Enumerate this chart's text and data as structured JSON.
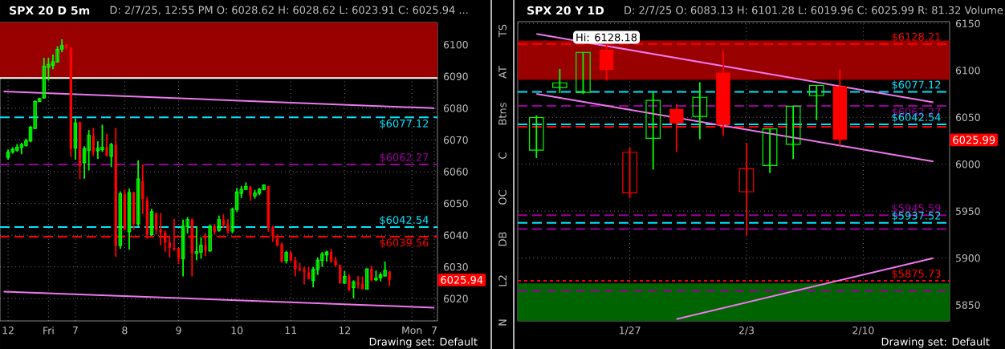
{
  "chart_data": [
    {
      "type": "candlestick",
      "title": "SPX 20 D 5m",
      "subtitle": "D: 2/7/25, 12:55 PM  O: 6028.62  H: 6028.62  L: 6023.91  C: 6025.94 ...",
      "annotations": [
        "Drawing set: Default",
        "6025.94"
      ],
      "categories": [
        null,
        "12",
        null,
        null,
        null,
        null,
        null,
        null,
        null,
        null,
        "Fri",
        null,
        null,
        null,
        null,
        null,
        "7",
        null,
        null,
        null,
        null,
        null,
        null,
        null,
        null,
        null,
        null,
        "8",
        null,
        null,
        null,
        null,
        null,
        null,
        null,
        null,
        null,
        null,
        null,
        "9",
        null,
        null,
        null,
        null,
        null,
        null,
        null,
        null,
        null,
        null,
        null,
        null,
        "10",
        null,
        null,
        null,
        null,
        null,
        null,
        null,
        null,
        null,
        null,
        null,
        "11",
        null,
        null,
        null,
        null,
        null,
        null,
        null,
        null,
        null,
        null,
        null,
        "12",
        null,
        null,
        null,
        null,
        null,
        null,
        null,
        null,
        null,
        null,
        null,
        null,
        null,
        null,
        "Mon",
        null,
        null,
        null,
        null,
        "7"
      ],
      "ohlc": [
        null,
        [
          6064.5,
          6067.0,
          6063.8,
          6066.2
        ],
        [
          6066.2,
          6067.7,
          6065.7,
          6067.0
        ],
        [
          6066.8,
          6068.7,
          6066.3,
          6067.7
        ],
        [
          6067.7,
          6069.1,
          6065.5,
          6068.5
        ],
        [
          6068.3,
          6070.4,
          6067.9,
          6069.7
        ],
        [
          6069.7,
          6074.5,
          6069.3,
          6074.0
        ],
        [
          6073.6,
          6082.5,
          6073.6,
          6082.1
        ],
        [
          6082.1,
          6083.3,
          6082.1,
          6083.0
        ],
        [
          6083.3,
          6095.9,
          6083.0,
          6093.2
        ],
        [
          6092.9,
          6095.9,
          6088.7,
          6093.8
        ],
        [
          6093.5,
          6096.9,
          6092.3,
          6094.6
        ],
        [
          6094.6,
          6099.5,
          6094.4,
          6098.5
        ],
        [
          6098.6,
          6101.7,
          6097.6,
          6099.7
        ],
        [
          6100.0,
          6100.3,
          6098.5,
          6098.9
        ],
        [
          6099.1,
          6099.3,
          6064.6,
          6067.2
        ],
        [
          6067.4,
          6076.8,
          6063.8,
          6075.3
        ],
        [
          6075.7,
          6075.7,
          6057.7,
          6061.9
        ],
        [
          6062.8,
          6068.0,
          6057.8,
          6067.3
        ],
        [
          6066.8,
          6073.1,
          6060.4,
          6071.4
        ],
        [
          6071.4,
          6073.8,
          6064.9,
          6066.2
        ],
        [
          6066.6,
          6069.6,
          6064.0,
          6067.4
        ],
        [
          6067.0,
          6074.8,
          6066.2,
          6067.7
        ],
        [
          6067.7,
          6071.9,
          6064.9,
          6064.9
        ],
        [
          6064.9,
          6069.1,
          6061.5,
          6068.5
        ],
        [
          6068.5,
          6073.8,
          6033.2,
          6036.6
        ],
        [
          6036.8,
          6053.8,
          6035.7,
          6053.0
        ],
        [
          6053.0,
          6054.4,
          6041.5,
          6041.9
        ],
        [
          6041.1,
          6054.7,
          6035.5,
          6053.4
        ],
        [
          6053.6,
          6053.6,
          6041.7,
          6043.6
        ],
        [
          6043.6,
          6063.6,
          6042.8,
          6057.7
        ],
        [
          6057.0,
          6062.3,
          6046.6,
          6051.3
        ],
        [
          6051.0,
          6052.1,
          6038.9,
          6040.2
        ],
        [
          6040.2,
          6048.3,
          6039.8,
          6047.4
        ],
        [
          6047.0,
          6047.0,
          6040.2,
          6041.7
        ],
        [
          6041.9,
          6047.0,
          6036.8,
          6040.8
        ],
        [
          6040.8,
          6041.5,
          6034.7,
          6037.7
        ],
        [
          6037.7,
          6039.8,
          6033.0,
          6036.0
        ],
        [
          6036.0,
          6045.1,
          6035.1,
          6035.5
        ],
        [
          6036.0,
          6036.0,
          6030.9,
          6032.6
        ],
        [
          6032.6,
          6044.9,
          6027.0,
          6042.8
        ],
        [
          6042.8,
          6045.7,
          6040.6,
          6044.9
        ],
        [
          6044.9,
          6045.3,
          6027.0,
          6034.3
        ],
        [
          6034.3,
          6042.8,
          6032.1,
          6034.8
        ],
        [
          6034.7,
          6039.4,
          6032.6,
          6036.8
        ],
        [
          6036.8,
          6040.6,
          6033.4,
          6035.1
        ],
        [
          6035.1,
          6043.4,
          6034.8,
          6042.8
        ],
        [
          6042.8,
          6043.6,
          6040.2,
          6041.1
        ],
        [
          6041.5,
          6046.2,
          6041.1,
          6044.9
        ],
        [
          6044.7,
          6046.6,
          6042.3,
          6043.2
        ],
        [
          6043.4,
          6045.1,
          6040.5,
          6041.3
        ],
        [
          6041.3,
          6048.7,
          6040.6,
          6048.1
        ],
        [
          6048.1,
          6054.9,
          6047.4,
          6053.6
        ],
        [
          6053.2,
          6055.5,
          6051.7,
          6054.4
        ],
        [
          6054.4,
          6056.6,
          6054.3,
          6055.3
        ],
        [
          6055.3,
          6055.5,
          6050.9,
          6052.6
        ],
        [
          6052.4,
          6054.3,
          6051.5,
          6053.2
        ],
        [
          6053.2,
          6054.9,
          6052.6,
          6054.4
        ],
        [
          6054.4,
          6056.0,
          6054.1,
          6055.8
        ],
        [
          6055.5,
          6055.5,
          6041.1,
          6042.3
        ],
        [
          6042.5,
          6043.0,
          6037.9,
          6039.8
        ],
        [
          6038.9,
          6040.2,
          6036.4,
          6036.8
        ],
        [
          6037.1,
          6037.7,
          6031.3,
          6031.7
        ],
        [
          6032.0,
          6035.1,
          6031.1,
          6034.5
        ],
        [
          6034.5,
          6035.1,
          6031.7,
          6032.0
        ],
        [
          6032.1,
          6033.2,
          6027.0,
          6029.2
        ],
        [
          6029.4,
          6031.3,
          6028.7,
          6028.9
        ],
        [
          6029.2,
          6030.0,
          6024.5,
          6028.3
        ],
        [
          6028.3,
          6030.0,
          6026.2,
          6026.2
        ],
        [
          6025.8,
          6030.0,
          6023.6,
          6029.2
        ],
        [
          6029.2,
          6033.0,
          6027.5,
          6032.1
        ],
        [
          6032.1,
          6034.7,
          6030.0,
          6034.0
        ],
        [
          6033.8,
          6035.1,
          6031.7,
          6034.7
        ],
        [
          6034.7,
          6035.7,
          6031.3,
          6031.7
        ],
        [
          6032.1,
          6033.2,
          6030.0,
          6030.6
        ],
        [
          6030.6,
          6030.6,
          6024.7,
          6024.9
        ],
        [
          6024.9,
          6028.7,
          6024.7,
          6027.0
        ],
        [
          6027.0,
          6027.7,
          6022.4,
          6022.8
        ],
        [
          6023.5,
          6025.8,
          6020.1,
          6025.2
        ],
        [
          6025.2,
          6027.2,
          6023.2,
          6024.5
        ],
        [
          6024.7,
          6027.0,
          6023.0,
          6023.0
        ],
        [
          6023.0,
          6029.4,
          6023.0,
          6029.4
        ],
        [
          6029.4,
          6030.4,
          6025.5,
          6025.8
        ],
        [
          6026.0,
          6028.9,
          6025.5,
          6026.4
        ],
        [
          6026.6,
          6028.3,
          6025.5,
          6027.5
        ],
        [
          6027.2,
          6031.7,
          6027.0,
          6028.9
        ],
        [
          6028.62,
          6028.62,
          6023.91,
          6025.94
        ],
        null,
        null,
        null,
        null,
        null,
        null,
        null,
        null,
        null,
        null
      ],
      "colors": [
        null,
        "#00ff00",
        "#00ff00",
        "#00ff00",
        "#00ff00",
        "#00ff00",
        "#00ff00",
        "#00ff00",
        "#00ff00",
        "#00ff00",
        "#00ff00",
        "#00ff00",
        "#00ff00",
        "#00ff00",
        "#ff0000",
        "#ff0000",
        "#00ff00",
        "#ff0000",
        "#00ff00",
        "#00ff00",
        "#ff0000",
        "#00ff00",
        "#00ff00",
        "#ff0000",
        "#00ff00",
        "#ff0000",
        "#00ff00",
        "#ff0000",
        "#00ff00",
        "#ff0000",
        "#00ff00",
        "#ff0000",
        "#ff0000",
        "#00ff00",
        "#ff0000",
        "#ff0000",
        "#ff0000",
        "#ff0000",
        "#ff0000",
        "#ff0000",
        "#00ff00",
        "#00ff00",
        "#ff0000",
        "#00ff00",
        "#00ff00",
        "#ff0000",
        "#00ff00",
        "#ff0000",
        "#00ff00",
        "#ff0000",
        "#ff0000",
        "#00ff00",
        "#00ff00",
        "#00ff00",
        "#00ff00",
        "#ff0000",
        "#00ff00",
        "#00ff00",
        "#00ff00",
        "#ff0000",
        "#ff0000",
        "#ff0000",
        "#ff0000",
        "#00ff00",
        "#ff0000",
        "#ff0000",
        "#ff0000",
        "#ff0000",
        "#ff0000",
        "#00ff00",
        "#00ff00",
        "#00ff00",
        "#00ff00",
        "#ff0000",
        "#ff0000",
        "#ff0000",
        "#00ff00",
        "#ff0000",
        "#00ff00",
        "#ff0000",
        "#ff0000",
        "#00ff00",
        "#ff0000",
        "#00ff00",
        "#00ff00",
        "#00ff00",
        "#ff0000",
        null,
        null,
        null,
        null,
        null,
        null,
        null,
        null,
        null,
        null
      ],
      "ylim": [
        6013,
        6107
      ],
      "yticks": [
        6020,
        6030,
        6040,
        6050,
        6060,
        6070,
        6080,
        6090,
        6100
      ],
      "grid": true,
      "ref_lines": [
        {
          "axis": "y",
          "value": 6077.12,
          "label": "$6077.12",
          "color": "#00e5ff",
          "line_style": "dashed"
        },
        {
          "axis": "y",
          "value": 6062.27,
          "label": "$6062.27",
          "color": "#990099",
          "line_style": "dashed"
        },
        {
          "axis": "y",
          "value": 6042.54,
          "label": "$6042.54",
          "color": "#00e5ff",
          "line_style": "dashed"
        },
        {
          "axis": "y",
          "value": 6039.56,
          "label": "$6039.56",
          "color": "#ff0000",
          "line_style": "dashed"
        },
        {
          "axis": "y",
          "value": 6089.5,
          "label": null,
          "color": "#ffffff",
          "line_style": "solid"
        }
      ],
      "bands": [
        {
          "axis": "y",
          "from": 6089.5,
          "to": 6107,
          "label": null,
          "color": "#990000"
        }
      ],
      "series": [
        {
          "type": "line",
          "color": "#ee77ee",
          "values": [
            6085.3,
            null,
            null,
            null,
            null,
            null,
            null,
            null,
            null,
            null,
            null,
            null,
            null,
            null,
            null,
            null,
            null,
            null,
            null,
            null,
            null,
            null,
            null,
            null,
            null,
            null,
            null,
            null,
            null,
            null,
            null,
            null,
            null,
            null,
            null,
            null,
            null,
            null,
            null,
            null,
            null,
            null,
            null,
            null,
            null,
            null,
            null,
            null,
            null,
            null,
            null,
            null,
            null,
            null,
            null,
            null,
            null,
            null,
            null,
            null,
            null,
            null,
            null,
            null,
            null,
            null,
            null,
            null,
            null,
            null,
            null,
            null,
            null,
            null,
            null,
            null,
            null,
            null,
            null,
            null,
            null,
            null,
            null,
            null,
            null,
            null,
            null,
            null,
            null,
            null,
            null,
            null,
            null,
            null,
            null,
            null,
            6080.0
          ]
        },
        {
          "type": "line",
          "color": "#ee77ee",
          "values": [
            6022.2,
            null,
            null,
            null,
            null,
            null,
            null,
            null,
            null,
            null,
            null,
            null,
            null,
            null,
            null,
            null,
            null,
            null,
            null,
            null,
            null,
            null,
            null,
            null,
            null,
            null,
            null,
            null,
            null,
            null,
            null,
            null,
            null,
            null,
            null,
            null,
            null,
            null,
            null,
            null,
            null,
            null,
            null,
            null,
            null,
            null,
            null,
            null,
            null,
            null,
            null,
            null,
            null,
            null,
            null,
            null,
            null,
            null,
            null,
            null,
            null,
            null,
            null,
            null,
            null,
            null,
            null,
            null,
            null,
            null,
            null,
            null,
            null,
            null,
            null,
            null,
            null,
            null,
            null,
            null,
            null,
            null,
            null,
            null,
            null,
            null,
            null,
            null,
            null,
            null,
            null,
            null,
            null,
            null,
            null,
            null,
            6017.2
          ]
        }
      ]
    },
    {
      "type": "other",
      "annotations": [
        "TS",
        "AT",
        "Btns",
        "C",
        "OC",
        "DB",
        "L2",
        "N"
      ]
    },
    {
      "type": "candlestick",
      "title": "SPX 20 Y 1D",
      "subtitle": "D: 2/7/25  O: 6083.13  H: 6101.28  L: 6019.96  C: 6025.99  R: 81.32  Volume",
      "annotations": [
        "Drawing set: Default",
        "Hi: 6128.18",
        "6025.99"
      ],
      "categories": [
        null,
        null,
        null,
        null,
        "1/27",
        null,
        null,
        null,
        null,
        "2/3",
        null,
        null,
        null,
        null,
        "2/10",
        null,
        null,
        null
      ],
      "ohlc": [
        [
          6015.1,
          6052.1,
          6006.5,
          6049.8
        ],
        [
          6081.7,
          6101.6,
          6076.0,
          6086.8
        ],
        [
          6076.6,
          6119.3,
          6074.9,
          6119.3
        ],
        [
          6122.1,
          6128.18,
          6089.1,
          6100.5
        ],
        [
          5969.5,
          6017.9,
          5963.8,
          6012.8
        ],
        [
          6027.6,
          6076.8,
          5994.3,
          6068.0
        ],
        [
          6058.9,
          6064.0,
          6012.8,
          6043.5
        ],
        [
          6050.9,
          6087.4,
          6026.5,
          6071.4
        ],
        [
          6097.6,
          6121.0,
          6030.4,
          6041.8
        ],
        [
          5970.7,
          6022.8,
          5924.0,
          5995.1
        ],
        [
          5998.6,
          6037.8,
          5990.6,
          6037.8
        ],
        [
          6021.3,
          6061.8,
          6005.7,
          6061.8
        ],
        [
          6073.1,
          6084.0,
          6047.0,
          6084.0
        ],
        [
          6083.13,
          6101.28,
          6019.96,
          6025.99
        ],
        null,
        null,
        null,
        null
      ],
      "colors": [
        "#00ff00",
        "#00ff00",
        "#00ff00",
        "#ff0000",
        "#ff0000",
        "#00ff00",
        "#ff0000",
        "#00ff00",
        "#ff0000",
        "#ff0000",
        "#00ff00",
        "#00ff00",
        "#00ff00",
        "#ff0000",
        null,
        null,
        null,
        null
      ],
      "ylim": [
        5833,
        6152
      ],
      "yticks": [
        5850,
        5900,
        5950,
        6000,
        6050,
        6100,
        6150
      ],
      "grid": true,
      "ref_lines": [
        {
          "axis": "y",
          "value": 6128.21,
          "label": "$6128.21",
          "color": "#ff0000",
          "line_style": "dashed"
        },
        {
          "axis": "y",
          "value": 6077.12,
          "label": "$6077.12",
          "color": "#00e5ff",
          "line_style": "dashed"
        },
        {
          "axis": "y",
          "value": 6062.27,
          "label": "$6062.27",
          "color": "#990099",
          "line_style": "dashed"
        },
        {
          "axis": "y",
          "value": 6042.54,
          "label": "$6042.54",
          "color": "#00e5ff",
          "line_style": "dashed"
        },
        {
          "axis": "y",
          "value": 6040,
          "label": null,
          "color": "#ff0000",
          "line_style": "dashed"
        },
        {
          "axis": "y",
          "value": 5945.59,
          "label": "$5945.59",
          "color": "#990099",
          "line_style": "dashed"
        },
        {
          "axis": "y",
          "value": 5937.52,
          "label": "$5937.52",
          "color": "#00e5ff",
          "line_style": "dashed"
        },
        {
          "axis": "y",
          "value": 5931,
          "label": null,
          "color": "#990099",
          "line_style": "dashed"
        },
        {
          "axis": "y",
          "value": 5875.73,
          "label": "$5875.73",
          "color": "#ff0000",
          "line_style": "dotted"
        },
        {
          "axis": "y",
          "value": 5865,
          "label": null,
          "color": "#990099",
          "line_style": "dashed"
        }
      ],
      "bands": [
        {
          "axis": "y",
          "from": 6090,
          "to": 6132,
          "label": null,
          "color": "#990000"
        },
        {
          "axis": "y",
          "from": 5833,
          "to": 5873,
          "label": null,
          "color": "#006400"
        }
      ],
      "series": [
        {
          "type": "line",
          "color": "#ee77ee",
          "values": [
            6139,
            null,
            null,
            null,
            null,
            null,
            null,
            null,
            null,
            null,
            null,
            null,
            null,
            null,
            null,
            null,
            null,
            6066
          ]
        },
        {
          "type": "line",
          "color": "#ee77ee",
          "values": [
            6075,
            null,
            null,
            null,
            null,
            null,
            null,
            null,
            null,
            null,
            null,
            null,
            null,
            null,
            null,
            null,
            null,
            6003
          ]
        },
        {
          "type": "line",
          "color": "#ee77ee",
          "values": [
            null,
            null,
            null,
            null,
            null,
            null,
            5835,
            null,
            null,
            null,
            null,
            null,
            null,
            null,
            null,
            null,
            null,
            5900
          ]
        }
      ]
    }
  ]
}
